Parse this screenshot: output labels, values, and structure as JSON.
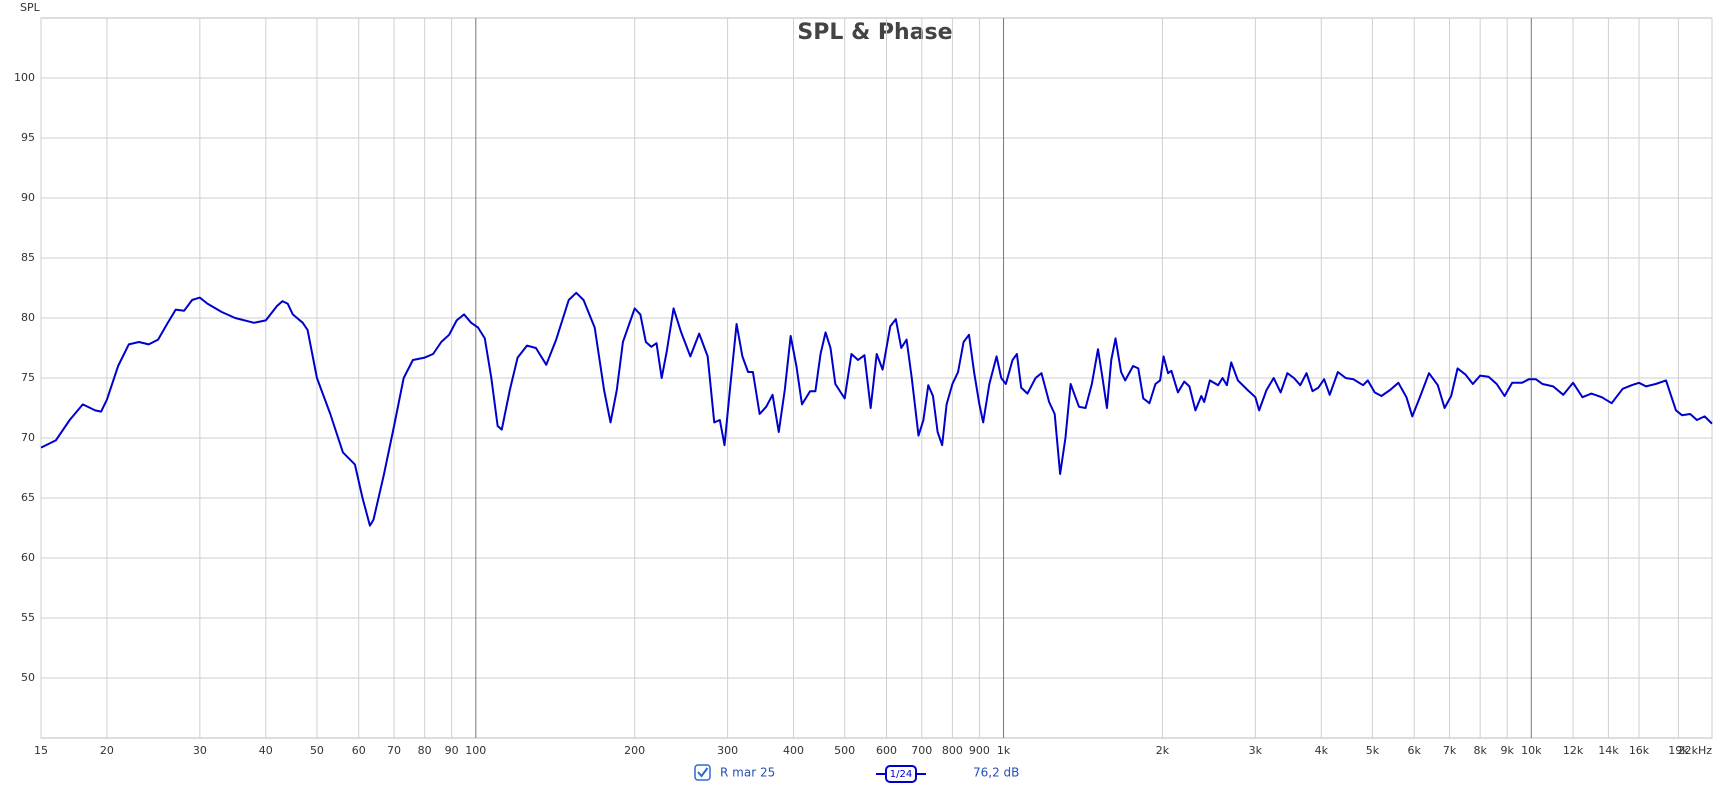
{
  "chart_data": {
    "type": "line",
    "title": "SPL & Phase",
    "y_label": "SPL",
    "log_x": true,
    "grid": true,
    "xlim": [
      15,
      22000
    ],
    "ylim": [
      45,
      105
    ],
    "xticks": [
      15,
      20,
      30,
      40,
      50,
      60,
      70,
      80,
      90,
      100,
      200,
      300,
      400,
      500,
      600,
      700,
      800,
      900,
      {
        "value": 1000,
        "label": "1k"
      },
      {
        "value": 2000,
        "label": "2k"
      },
      {
        "value": 3000,
        "label": "3k"
      },
      {
        "value": 4000,
        "label": "4k"
      },
      {
        "value": 5000,
        "label": "5k"
      },
      {
        "value": 6000,
        "label": "6k"
      },
      {
        "value": 7000,
        "label": "7k"
      },
      {
        "value": 8000,
        "label": "8k"
      },
      {
        "value": 9000,
        "label": "9k"
      },
      {
        "value": 10000,
        "label": "10k"
      },
      {
        "value": 12000,
        "label": "12k"
      },
      {
        "value": 14000,
        "label": "14k"
      },
      {
        "value": 16000,
        "label": "16k"
      },
      {
        "value": 19000,
        "label": "19k"
      },
      {
        "value": 22000,
        "label": "22kHz"
      }
    ],
    "yticks": [
      50,
      55,
      60,
      65,
      70,
      75,
      80,
      85,
      90,
      95,
      100
    ],
    "smoothing": "1/24",
    "cursor_readout": "76,2 dB",
    "x": [
      15,
      16,
      17,
      18,
      19,
      19.5,
      20,
      21,
      22,
      23,
      24,
      25,
      26,
      27,
      28,
      29,
      30,
      31,
      33,
      35,
      38,
      40,
      42,
      43,
      44,
      45,
      47,
      48,
      50,
      53,
      56,
      59,
      61,
      63,
      64,
      67,
      70,
      73,
      76,
      80,
      83,
      86,
      89,
      92,
      95,
      98,
      101,
      104,
      107,
      110,
      112,
      116,
      120,
      125,
      130,
      136,
      142,
      150,
      155,
      160,
      168,
      175,
      180,
      185,
      190,
      200,
      205,
      210,
      215,
      220,
      225,
      230,
      237,
      245,
      255,
      265,
      275,
      283,
      290,
      296,
      303,
      312,
      320,
      328,
      335,
      345,
      355,
      365,
      375,
      385,
      395,
      405,
      415,
      430,
      440,
      450,
      460,
      470,
      480,
      500,
      515,
      530,
      545,
      560,
      575,
      590,
      610,
      625,
      640,
      655,
      670,
      690,
      705,
      720,
      735,
      750,
      765,
      780,
      800,
      820,
      840,
      860,
      880,
      900,
      915,
      940,
      970,
      990,
      1010,
      1040,
      1060,
      1080,
      1110,
      1150,
      1180,
      1220,
      1250,
      1280,
      1310,
      1340,
      1390,
      1430,
      1470,
      1510,
      1540,
      1570,
      1600,
      1630,
      1670,
      1700,
      1760,
      1800,
      1840,
      1890,
      1940,
      1980,
      2010,
      2050,
      2080,
      2140,
      2200,
      2250,
      2310,
      2370,
      2400,
      2460,
      2550,
      2600,
      2650,
      2700,
      2780,
      2900,
      3000,
      3050,
      3150,
      3250,
      3350,
      3450,
      3550,
      3650,
      3750,
      3850,
      3950,
      4050,
      4150,
      4300,
      4450,
      4600,
      4800,
      4900,
      5050,
      5200,
      5400,
      5600,
      5800,
      5950,
      6150,
      6400,
      6650,
      6850,
      7050,
      7250,
      7500,
      7750,
      8000,
      8300,
      8600,
      8900,
      9200,
      9600,
      9900,
      10200,
      10500,
      11000,
      11500,
      12000,
      12500,
      13000,
      13600,
      14200,
      14900,
      15500,
      16000,
      16500,
      17200,
      18000,
      18800,
      19300,
      20000,
      20600,
      21300,
      22000
    ],
    "series": [
      {
        "name": "R mar 25",
        "color": "#0000cc",
        "values": [
          69.2,
          69.8,
          71.5,
          72.8,
          72.3,
          72.2,
          73.2,
          76,
          77.8,
          78,
          77.8,
          78.2,
          79.5,
          80.7,
          80.6,
          81.5,
          81.7,
          81.2,
          80.5,
          80,
          79.6,
          79.8,
          81,
          81.4,
          81.2,
          80.3,
          79.6,
          79,
          75,
          72,
          68.8,
          67.8,
          65,
          62.7,
          63.2,
          67,
          71,
          75,
          76.5,
          76.7,
          77,
          78,
          78.6,
          79.8,
          80.3,
          79.6,
          79.2,
          78.3,
          75,
          71,
          70.7,
          74,
          76.7,
          77.7,
          77.5,
          76.1,
          78.2,
          81.5,
          82.1,
          81.5,
          79.2,
          74,
          71.3,
          74,
          78,
          80.8,
          80.3,
          78,
          77.6,
          77.9,
          75,
          77.2,
          80.8,
          78.8,
          76.8,
          78.7,
          76.8,
          71.3,
          71.5,
          69.4,
          74,
          79.5,
          76.8,
          75.5,
          75.5,
          72,
          72.6,
          73.6,
          70.5,
          74,
          78.5,
          76,
          72.8,
          73.9,
          73.9,
          77,
          78.8,
          77.5,
          74.5,
          73.3,
          77,
          76.5,
          76.9,
          72.5,
          77,
          75.7,
          79.3,
          79.9,
          77.5,
          78.2,
          75,
          70.2,
          71.5,
          74.4,
          73.5,
          70.5,
          69.4,
          72.8,
          74.5,
          75.5,
          78,
          78.6,
          75.4,
          72.8,
          71.3,
          74.5,
          76.8,
          75,
          74.5,
          76.5,
          77,
          74.2,
          73.7,
          75,
          75.4,
          73,
          72,
          67,
          70,
          74.5,
          72.6,
          72.5,
          74.5,
          77.4,
          75,
          72.5,
          76.5,
          78.3,
          75.5,
          74.8,
          76,
          75.8,
          73.3,
          72.9,
          74.5,
          74.8,
          76.8,
          75.4,
          75.6,
          73.8,
          74.7,
          74.3,
          72.3,
          73.5,
          73,
          74.8,
          74.4,
          75,
          74.4,
          76.3,
          74.8,
          74,
          73.4,
          72.3,
          74,
          75,
          73.8,
          75.4,
          75,
          74.4,
          75.4,
          73.9,
          74.2,
          74.9,
          73.6,
          75.5,
          75,
          74.9,
          74.4,
          74.8,
          73.8,
          73.5,
          74,
          74.6,
          73.4,
          71.8,
          73.4,
          75.4,
          74.4,
          72.5,
          73.5,
          75.8,
          75.3,
          74.5,
          75.2,
          75.1,
          74.5,
          73.5,
          74.6,
          74.6,
          74.9,
          74.9,
          74.5,
          74.3,
          73.6,
          74.6,
          73.4,
          73.7,
          73.4,
          72.9,
          74.1,
          74.4,
          74.6,
          74.3,
          74.5,
          74.8,
          72.3,
          71.9,
          72,
          71.5,
          71.8,
          71.2
        ]
      }
    ]
  }
}
